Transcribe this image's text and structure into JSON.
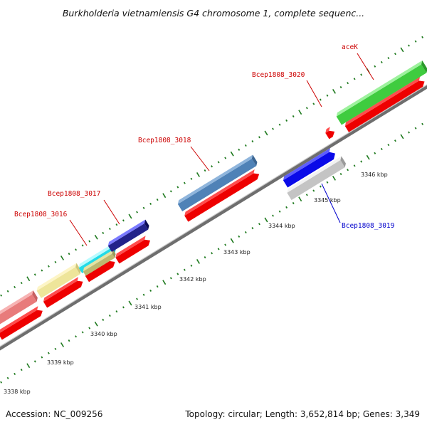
{
  "title": "Burkholderia vietnamiensis G4 chromosome 1, complete sequenc...",
  "footer": {
    "accession": "Accession: NC_009256",
    "summary": "Topology: circular; Length: 3,652,814 bp; Genes: 3,349"
  },
  "colors": {
    "backbone": "#8a8a8a",
    "tick": "#1f7a1f",
    "label_red": "#cc0000",
    "label_blue": "#0000cc"
  },
  "scale_ticks": [
    {
      "label": "3338 kbp"
    },
    {
      "label": "3339 kbp"
    },
    {
      "label": "3340 kbp"
    },
    {
      "label": "3341 kbp"
    },
    {
      "label": "3342 kbp"
    },
    {
      "label": "3343 kbp"
    },
    {
      "label": "3344 kbp"
    },
    {
      "label": "3345 kbp"
    },
    {
      "label": "3346 kbp"
    }
  ],
  "genes": [
    {
      "name": "Bcep1808_3016",
      "label_color": "red"
    },
    {
      "name": "Bcep1808_3017",
      "label_color": "red"
    },
    {
      "name": "Bcep1808_3018",
      "label_color": "red"
    },
    {
      "name": "Bcep1808_3019",
      "label_color": "blue"
    },
    {
      "name": "Bcep1808_3020",
      "label_color": "red"
    },
    {
      "name": "aceK",
      "label_color": "red"
    }
  ]
}
